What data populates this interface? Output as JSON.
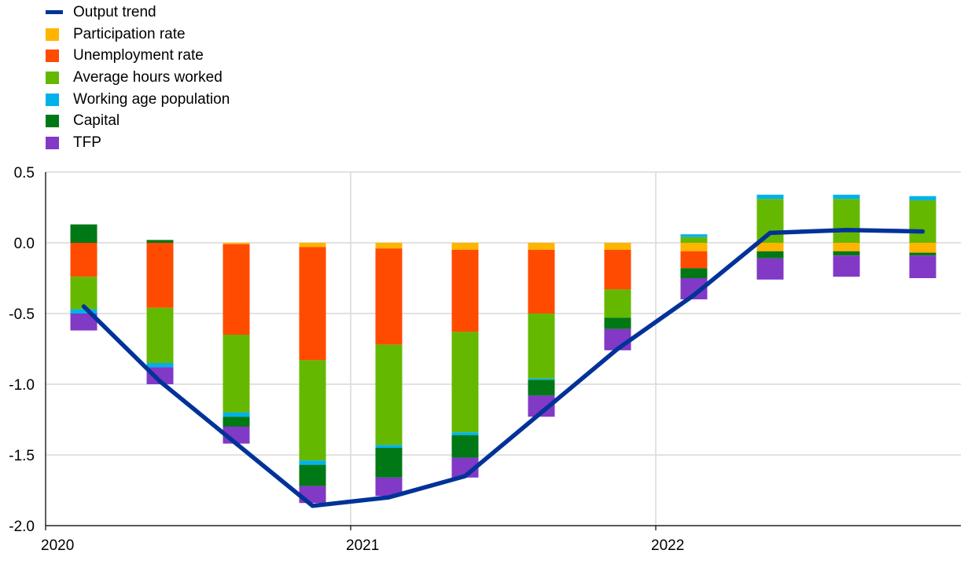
{
  "chart_data": {
    "type": "bar",
    "stacked": true,
    "title": "",
    "xlabel": "",
    "ylabel": "",
    "ylim": [
      -2.0,
      0.5
    ],
    "y_ticks": [
      "0.5",
      "0.0",
      "-0.5",
      "-1.0",
      "-1.5",
      "-2.0"
    ],
    "y_tick_values": [
      0.5,
      0.0,
      -0.5,
      -1.0,
      -1.5,
      -2.0
    ],
    "x_tick_labels": [
      "2020",
      "2021",
      "2022"
    ],
    "x_tick_category_index": [
      0,
      4,
      8
    ],
    "categories": [
      "2020 Q1",
      "2020 Q2",
      "2020 Q3",
      "2020 Q4",
      "2021 Q1",
      "2021 Q2",
      "2021 Q3",
      "2021 Q4",
      "2022 Q1",
      "2022 Q2",
      "2022 Q3",
      "2022 Q4"
    ],
    "grid": true,
    "legend_position": "top-left",
    "series": [
      {
        "name": "Participation rate",
        "color": "#FFB400",
        "values": [
          0.0,
          0.0,
          -0.01,
          -0.03,
          -0.04,
          -0.05,
          -0.05,
          -0.05,
          -0.06,
          -0.06,
          -0.06,
          -0.07
        ]
      },
      {
        "name": "Unemployment rate",
        "color": "#FF4B00",
        "values": [
          -0.24,
          -0.46,
          -0.64,
          -0.8,
          -0.68,
          -0.58,
          -0.45,
          -0.28,
          -0.12,
          0.0,
          0.0,
          0.0
        ]
      },
      {
        "name": "Average hours worked",
        "color": "#65B800",
        "values": [
          -0.23,
          -0.39,
          -0.55,
          -0.71,
          -0.71,
          -0.71,
          -0.46,
          -0.2,
          0.04,
          0.31,
          0.31,
          0.3
        ]
      },
      {
        "name": "Working age population",
        "color": "#00B1EA",
        "values": [
          -0.03,
          -0.03,
          -0.03,
          -0.03,
          -0.02,
          -0.02,
          -0.01,
          0.0,
          0.02,
          0.03,
          0.03,
          0.03
        ]
      },
      {
        "name": "Capital",
        "color": "#007816",
        "values": [
          0.13,
          0.02,
          -0.07,
          -0.15,
          -0.21,
          -0.16,
          -0.11,
          -0.08,
          -0.07,
          -0.05,
          -0.03,
          -0.02
        ]
      },
      {
        "name": "TFP",
        "color": "#8139C6",
        "values": [
          -0.12,
          -0.12,
          -0.12,
          -0.12,
          -0.13,
          -0.14,
          -0.15,
          -0.15,
          -0.15,
          -0.15,
          -0.15,
          -0.16
        ]
      }
    ],
    "line": {
      "name": "Output trend",
      "color": "#003299",
      "values": [
        -0.45,
        -0.98,
        -1.42,
        -1.86,
        -1.8,
        -1.65,
        -1.2,
        -0.75,
        -0.37,
        0.07,
        0.09,
        0.08
      ]
    }
  }
}
